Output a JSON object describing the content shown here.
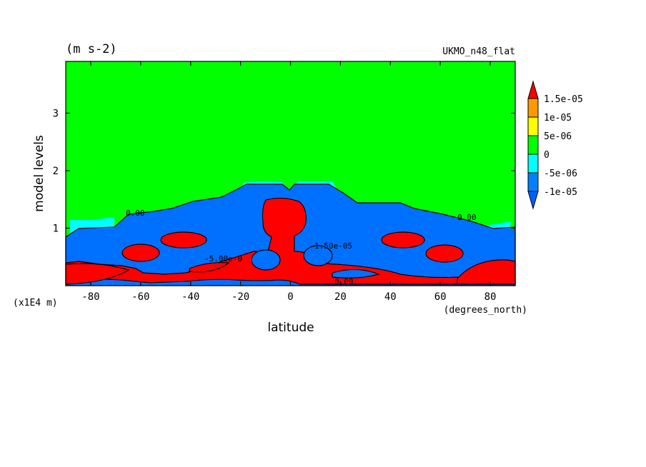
{
  "chart_data": {
    "type": "heatmap",
    "title": "(m s-2)",
    "subtitle": "UKMO_n48_flat",
    "xlabel": "latitude",
    "xunits": "(degrees_north)",
    "ylabel": "model levels",
    "yunits": "(x1E4 m)",
    "xlim": [
      -90,
      90
    ],
    "ylim": [
      0,
      3.9
    ],
    "xticks": [
      -80,
      -60,
      -40,
      -20,
      0,
      20,
      40,
      60,
      80
    ],
    "yticks": [
      1,
      2,
      3
    ],
    "legend": {
      "placement": "right",
      "levels": [
        "1.5e-05",
        "1e-05",
        "5e-06",
        "0",
        "-5e-06",
        "-1e-05"
      ],
      "colors": [
        "#ff0000",
        "#ff9900",
        "#ffff00",
        "#00ff00",
        "#00ffff",
        "#0080ff",
        "#0060ff"
      ]
    },
    "regions": {
      "upper_field": {
        "color": "#00ff00",
        "value_range": "0 to 5e-06"
      },
      "lower_band": {
        "color": "#0070ff",
        "value_range": "-1e-05 to -5e-06"
      },
      "cores": {
        "color": "#ff0000",
        "value_range": ">1.5e-05"
      }
    },
    "contour_labels": [
      "0.00",
      "-5.00e-0",
      "1.50e-05",
      "0.00",
      "0.00"
    ]
  }
}
